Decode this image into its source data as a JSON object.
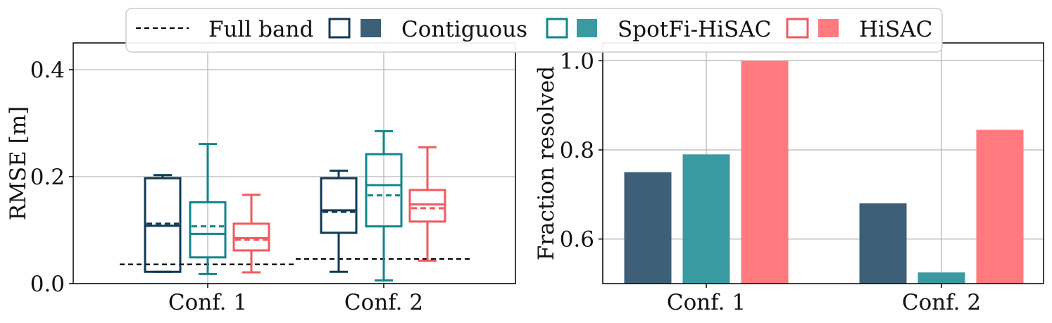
{
  "legend": {
    "items": [
      {
        "kind": "dashed-line",
        "label": "Full band"
      },
      {
        "kind": "box-pair",
        "label": "Contiguous",
        "color": "#0f3a56",
        "fill": "#3d5f77"
      },
      {
        "kind": "box-pair",
        "label": "SpotFi-HiSAC",
        "color": "#12858c",
        "fill": "#3a9aa2"
      },
      {
        "kind": "box-pair",
        "label": "HiSAC",
        "color": "#f05a5f",
        "fill": "#ff7a7e"
      }
    ]
  },
  "chart_data": [
    {
      "type": "box",
      "title": "",
      "xlabel": "",
      "ylabel": "RMSE [m]",
      "ylim": [
        0,
        0.45
      ],
      "yticks": [
        0.0,
        0.2,
        0.4
      ],
      "ytick_labels": [
        "0.0",
        "0.2",
        "0.4"
      ],
      "categories": [
        "Conf. 1",
        "Conf. 2"
      ],
      "grid": true,
      "reference": {
        "name": "Full band",
        "values": [
          0.036,
          0.046
        ]
      },
      "series": [
        {
          "name": "Contiguous",
          "color": "#0f3a56",
          "boxes": [
            {
              "whisker_low": 0.022,
              "q1": 0.022,
              "median": 0.108,
              "q3": 0.197,
              "whisker_high": 0.203,
              "mean": 0.112
            },
            {
              "whisker_low": 0.022,
              "q1": 0.095,
              "median": 0.137,
              "q3": 0.197,
              "whisker_high": 0.211,
              "mean": 0.134
            }
          ]
        },
        {
          "name": "SpotFi-HiSAC",
          "color": "#12858c",
          "boxes": [
            {
              "whisker_low": 0.018,
              "q1": 0.049,
              "median": 0.093,
              "q3": 0.152,
              "whisker_high": 0.261,
              "mean": 0.107
            },
            {
              "whisker_low": 0.006,
              "q1": 0.107,
              "median": 0.184,
              "q3": 0.242,
              "whisker_high": 0.285,
              "mean": 0.165
            }
          ]
        },
        {
          "name": "HiSAC",
          "color": "#f05a5f",
          "boxes": [
            {
              "whisker_low": 0.021,
              "q1": 0.062,
              "median": 0.085,
              "q3": 0.112,
              "whisker_high": 0.166,
              "mean": 0.082
            },
            {
              "whisker_low": 0.043,
              "q1": 0.116,
              "median": 0.148,
              "q3": 0.175,
              "whisker_high": 0.255,
              "mean": 0.141
            }
          ]
        }
      ]
    },
    {
      "type": "bar",
      "title": "",
      "xlabel": "",
      "ylabel": "Fraction resolved",
      "ylim": [
        0.5,
        1.04
      ],
      "yticks": [
        0.6,
        0.8,
        1.0
      ],
      "ytick_labels": [
        "0.6",
        "0.8",
        "1.0"
      ],
      "categories": [
        "Conf. 1",
        "Conf. 2"
      ],
      "grid": true,
      "series": [
        {
          "name": "Contiguous",
          "color": "#3d5f77",
          "values": [
            0.75,
            0.68
          ]
        },
        {
          "name": "SpotFi-HiSAC",
          "color": "#3a9aa2",
          "values": [
            0.79,
            0.525
          ]
        },
        {
          "name": "HiSAC",
          "color": "#ff7a7e",
          "values": [
            1.0,
            0.845
          ]
        }
      ]
    }
  ]
}
